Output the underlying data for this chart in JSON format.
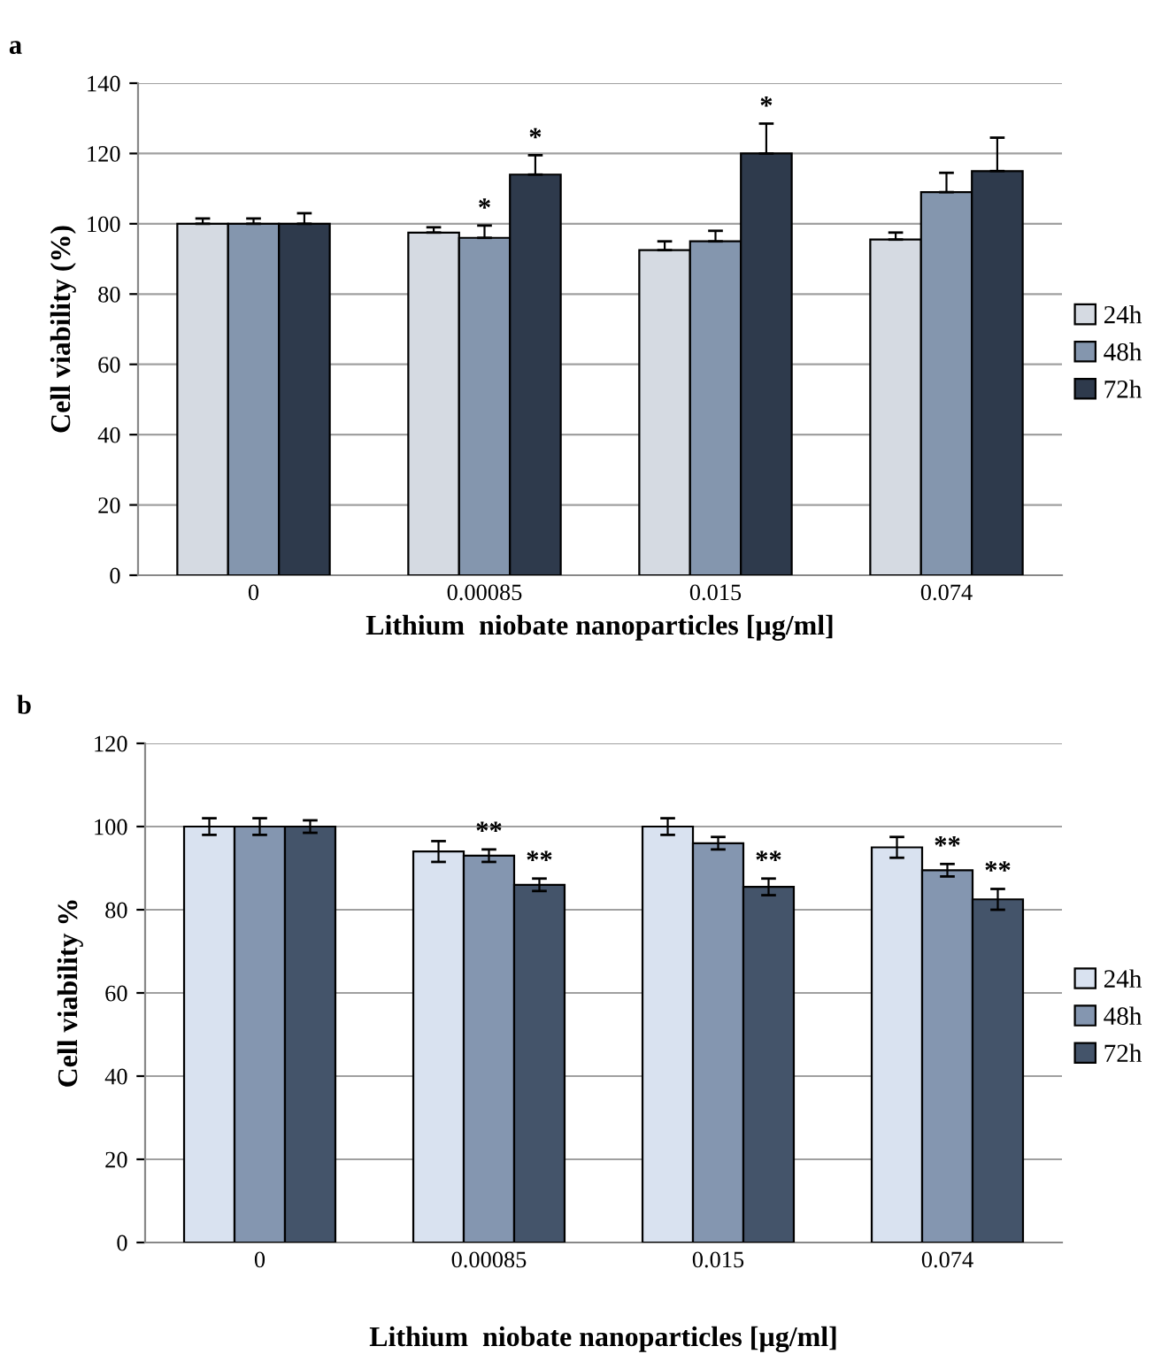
{
  "chart_data": [
    {
      "type": "bar",
      "title": "a",
      "xlabel": "Lithium  niobate nanoparticles [µg/ml]",
      "ylabel": "Cell viability (%)",
      "categories": [
        "0",
        "0.00085",
        "0.015",
        "0.074"
      ],
      "ylim": [
        0,
        140
      ],
      "yticks": [
        0,
        20,
        40,
        60,
        80,
        100,
        120,
        140
      ],
      "grid": "y",
      "legend": "right",
      "series": [
        {
          "name": "24h",
          "color": "#d5dae2",
          "values": [
            100,
            97.5,
            92.5,
            95.5
          ],
          "errors": [
            [
              100,
              101.5
            ],
            [
              97.5,
              99
            ],
            [
              92.5,
              95
            ],
            [
              95.5,
              97.5
            ]
          ]
        },
        {
          "name": "48h",
          "color": "#8496ae",
          "values": [
            100,
            96,
            95,
            109
          ],
          "errors": [
            [
              100,
              101.5
            ],
            [
              96,
              99.5
            ],
            [
              95,
              98
            ],
            [
              109,
              114.5
            ]
          ],
          "value_labels": [
            null,
            "*",
            null,
            null
          ]
        },
        {
          "name": "72h",
          "color": "#2e3a4c",
          "values": [
            100,
            114,
            120,
            115
          ],
          "errors": [
            [
              100,
              103
            ],
            [
              114,
              119.5
            ],
            [
              120,
              128.5
            ],
            [
              115,
              124.5
            ]
          ],
          "value_labels": [
            null,
            "*",
            "*",
            null
          ]
        }
      ]
    },
    {
      "type": "bar",
      "title": "b",
      "xlabel": "Lithium  niobate nanoparticles [µg/ml]",
      "ylabel": "Cell viability %",
      "categories": [
        "0",
        "0.00085",
        "0.015",
        "0.074"
      ],
      "ylim": [
        0,
        120
      ],
      "yticks": [
        0,
        20,
        40,
        60,
        80,
        100,
        120
      ],
      "grid": "y",
      "legend": "right",
      "series": [
        {
          "name": "24h",
          "color": "#d9e2f0",
          "values": [
            100,
            94,
            100,
            95
          ],
          "errors": [
            2,
            2.5,
            2,
            2.5
          ]
        },
        {
          "name": "48h",
          "color": "#8496b0",
          "values": [
            100,
            93,
            96,
            89.5
          ],
          "errors": [
            2,
            1.5,
            1.5,
            1.5
          ],
          "value_labels": [
            null,
            "**",
            null,
            "**"
          ]
        },
        {
          "name": "72h",
          "color": "#44546a",
          "values": [
            100,
            86,
            85.5,
            82.5
          ],
          "errors": [
            1.5,
            1.5,
            2,
            2.5
          ],
          "value_labels": [
            null,
            "**",
            "**",
            "**"
          ]
        }
      ]
    }
  ]
}
